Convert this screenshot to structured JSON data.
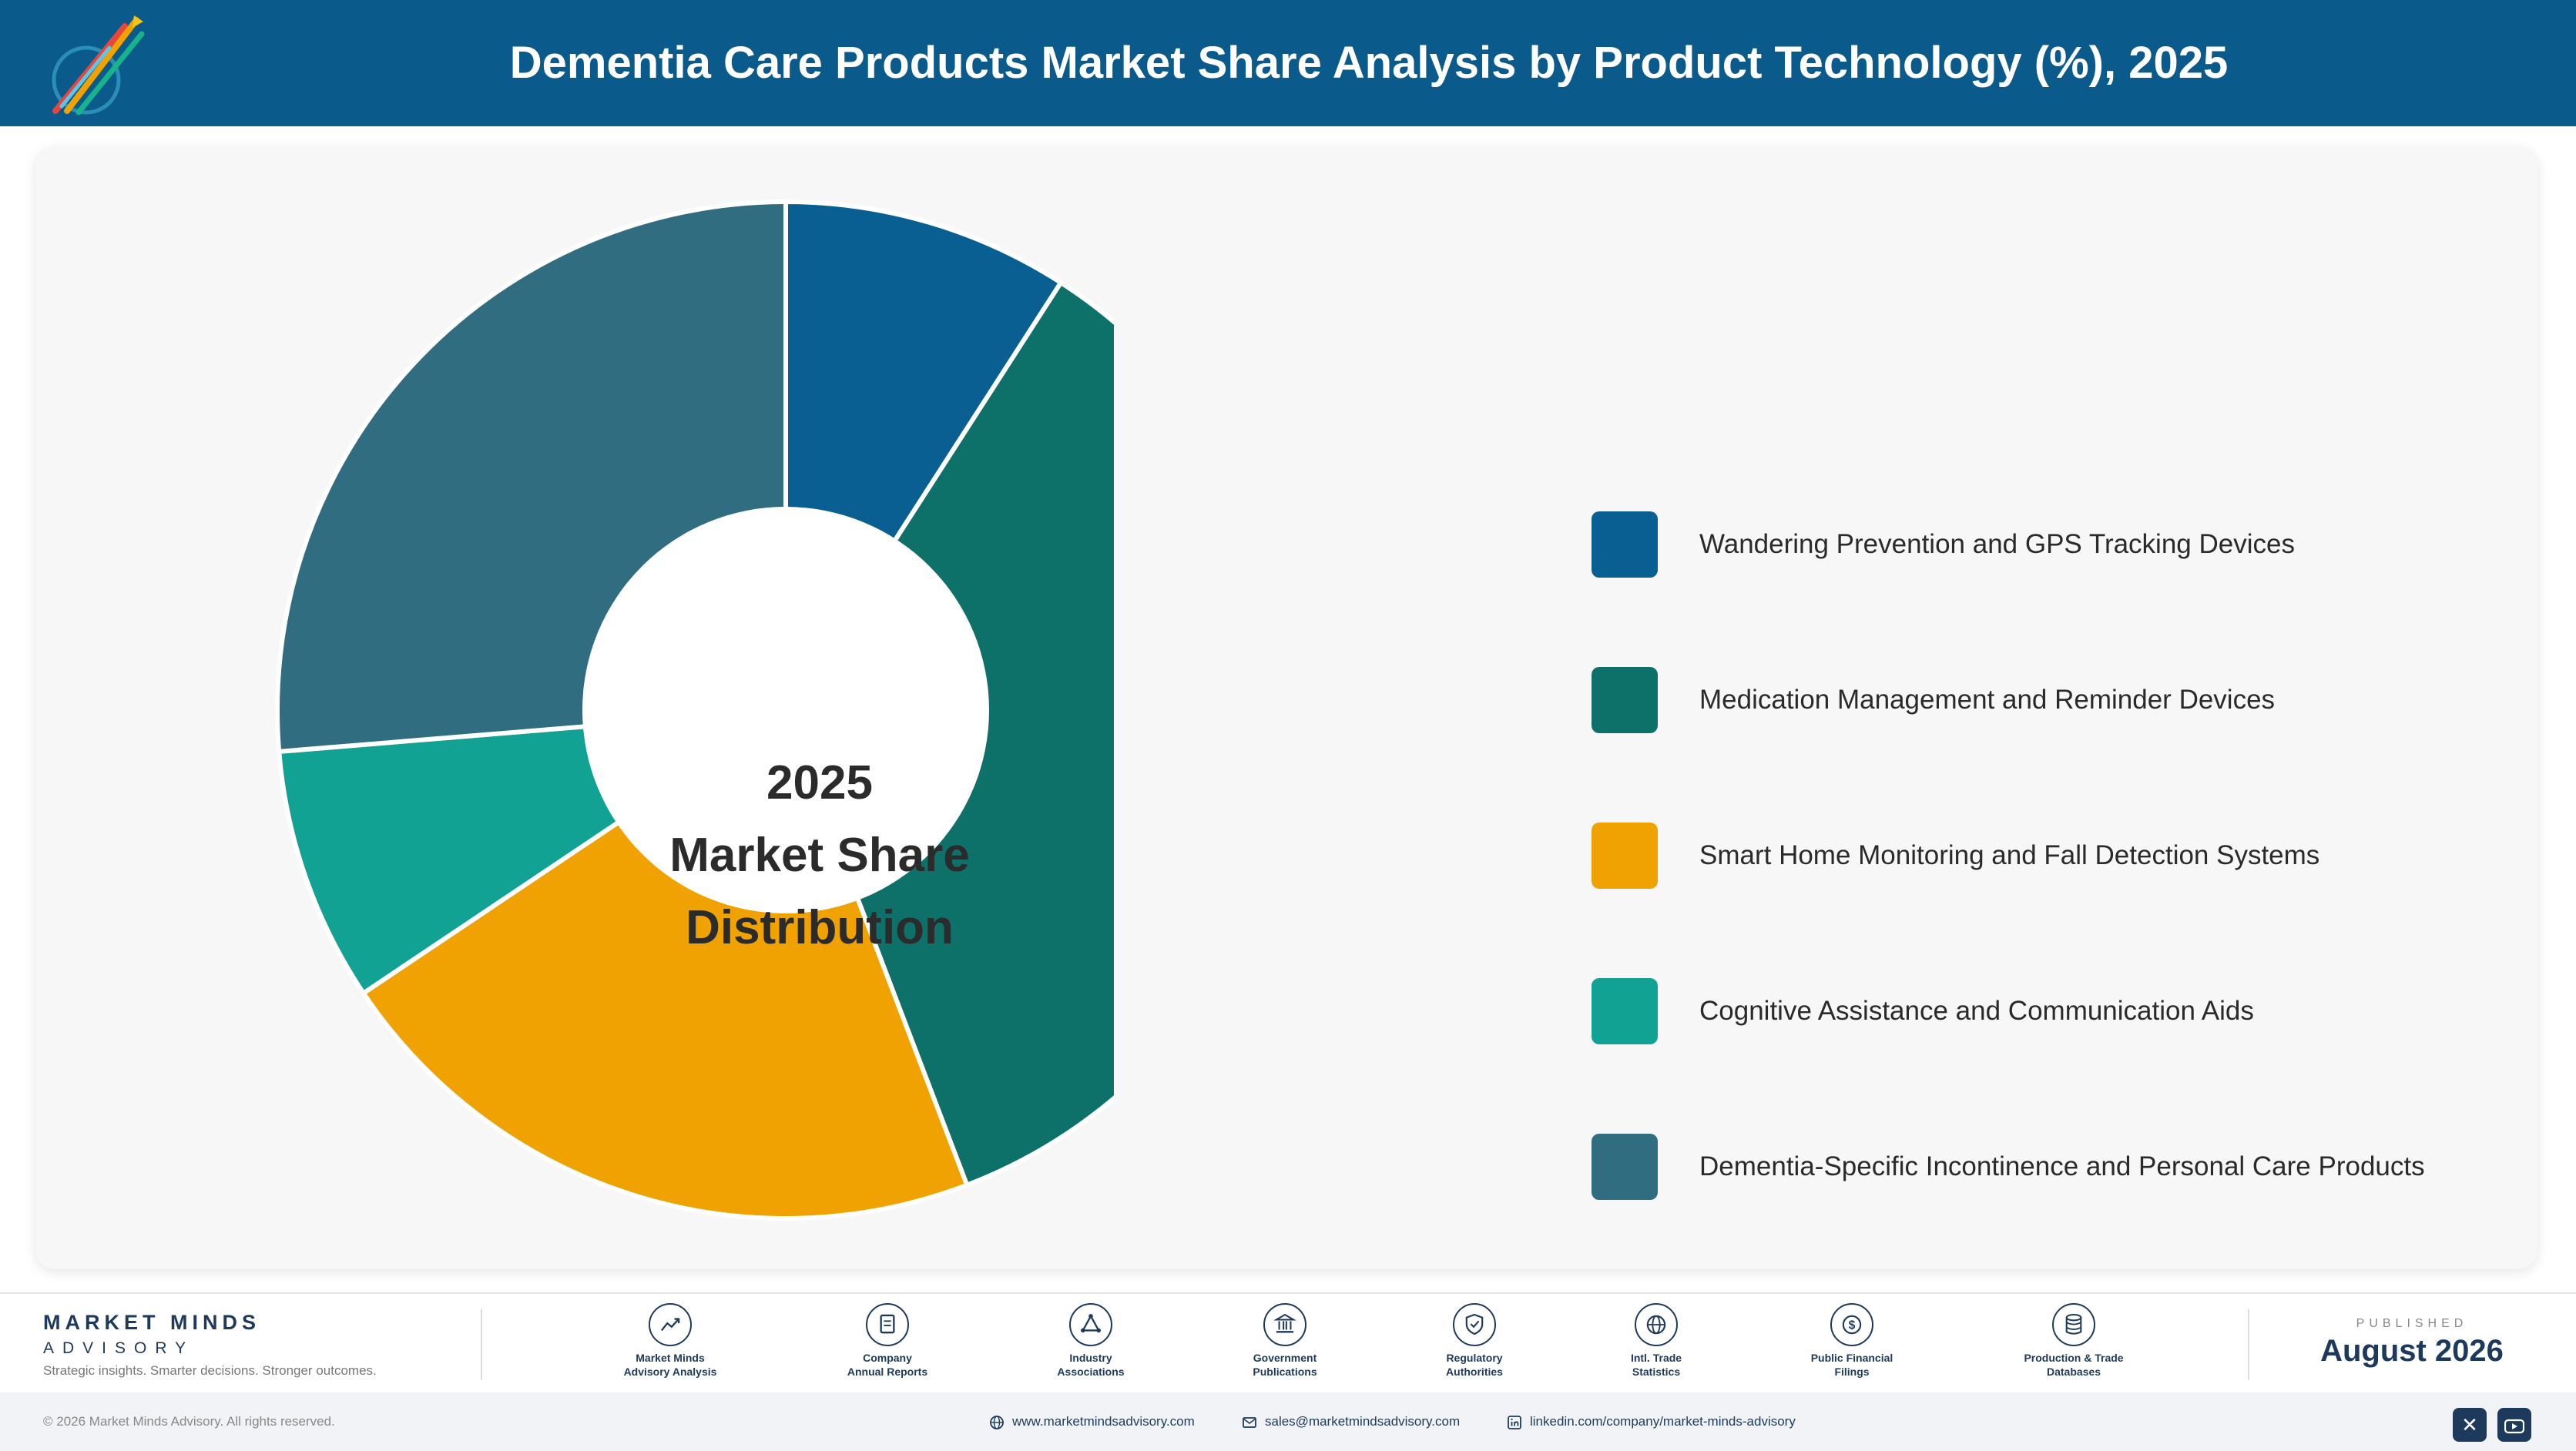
{
  "header": {
    "title": "Dementia Care Products Market Share Analysis by Product Technology (%), 2025"
  },
  "chart_data": {
    "type": "pie",
    "title": "Dementia Care Products Market Share Analysis by Product Technology (%), 2025",
    "center_label": [
      "2025",
      "Market Share",
      "Distribution"
    ],
    "categories": [
      "Wandering Prevention and GPS Tracking Devices",
      "Medication Management and Reminder Devices",
      "Smart Home Monitoring and Fall Detection Systems",
      "Cognitive Assistance and Communication Aids",
      "Dementia-Specific Incontinence and Personal Care Products"
    ],
    "values": [
      9.1,
      35.1,
      21.4,
      8.1,
      26.3
    ],
    "colors": [
      "#0a5f92",
      "#0d716a",
      "#f0a202",
      "#12a293",
      "#306d80"
    ],
    "legend": "right"
  },
  "footer": {
    "brand_name": "MARKET MINDS",
    "brand_sub": "ADVISORY",
    "tagline": "Strategic insights. Smarter decisions. Stronger outcomes.",
    "sources": [
      {
        "icon": "trend-chart-icon",
        "line1": "Market Minds",
        "line2": "Advisory Analysis"
      },
      {
        "icon": "document-icon",
        "line1": "Company",
        "line2": "Annual Reports"
      },
      {
        "icon": "network-icon",
        "line1": "Industry",
        "line2": "Associations"
      },
      {
        "icon": "government-building-icon",
        "line1": "Government",
        "line2": "Publications"
      },
      {
        "icon": "shield-check-icon",
        "line1": "Regulatory",
        "line2": "Authorities"
      },
      {
        "icon": "globe-icon",
        "line1": "Intl. Trade",
        "line2": "Statistics"
      },
      {
        "icon": "dollar-coin-icon",
        "line1": "Public Financial",
        "line2": "Filings"
      },
      {
        "icon": "database-icon",
        "line1": "Production & Trade",
        "line2": "Databases"
      }
    ],
    "published_label": "PUBLISHED",
    "published_date": "August 2026",
    "copyright": "© 2026 Market Minds Advisory. All rights reserved.",
    "website": "www.marketmindsadvisory.com",
    "email": "sales@marketmindsadvisory.com",
    "linkedin": "linkedin.com/company/market-minds-advisory",
    "social_icons": [
      "x-icon",
      "youtube-icon"
    ]
  }
}
